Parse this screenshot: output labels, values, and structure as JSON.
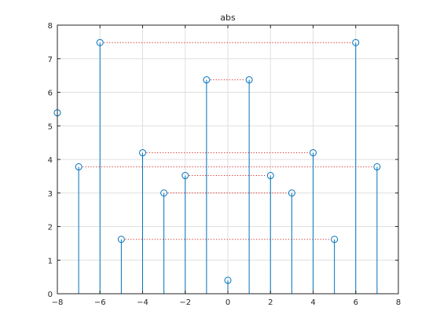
{
  "chart_data": {
    "type": "stem",
    "title": "abs",
    "xlabel": "",
    "ylabel": "",
    "xlim": [
      -8,
      8
    ],
    "ylim": [
      0,
      8
    ],
    "xticks": [
      -8,
      -6,
      -4,
      -2,
      0,
      2,
      4,
      6,
      8
    ],
    "yticks": [
      0,
      1,
      2,
      3,
      4,
      5,
      6,
      7,
      8
    ],
    "grid": true,
    "series": [
      {
        "x": [
          -8,
          -7,
          -6,
          -5,
          -4,
          -3,
          -2,
          -1,
          0,
          1,
          2,
          3,
          4,
          5,
          6,
          7
        ],
        "y": [
          5.39,
          3.78,
          7.48,
          1.62,
          4.2,
          3.0,
          3.52,
          6.37,
          0.4,
          6.37,
          3.52,
          3.0,
          4.2,
          1.62,
          7.48,
          3.78
        ],
        "marker": "circle"
      }
    ],
    "symmetry_links": [
      {
        "from": -6,
        "to": 6,
        "y": 7.48
      },
      {
        "from": -1,
        "to": 1,
        "y": 6.37
      },
      {
        "from": -4,
        "to": 4,
        "y": 4.2
      },
      {
        "from": -7,
        "to": 7,
        "y": 3.78
      },
      {
        "from": -2,
        "to": 2,
        "y": 3.52
      },
      {
        "from": -3,
        "to": 3,
        "y": 3.0
      },
      {
        "from": -5,
        "to": 5,
        "y": 1.62
      }
    ],
    "colors": {
      "stem": "#0072bd",
      "link": "#d62728",
      "grid": "#dfdfdf",
      "axis": "#262626"
    }
  }
}
